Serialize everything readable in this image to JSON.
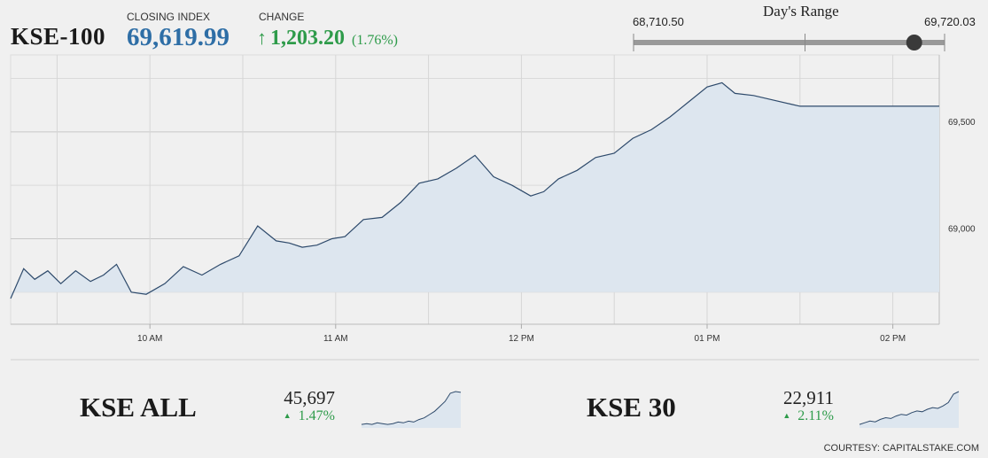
{
  "header": {
    "index_name": "KSE-100",
    "closing_label": "CLOSING INDEX",
    "closing_value": "69,619.99",
    "change_label": "CHANGE",
    "change_arrow": "↑",
    "change_value": "1,203.20",
    "change_pct": "(1.76%)",
    "positive_color": "#2e9b4a",
    "accent_color": "#2e6ea6"
  },
  "days_range": {
    "title": "Day's Range",
    "low_label": "68,710.50",
    "high_label": "69,720.03",
    "low": 68710.5,
    "high": 69720.03,
    "current": 69619.99
  },
  "chart_data": {
    "type": "area",
    "x_ticks": [
      "10 AM",
      "11 AM",
      "12 PM",
      "01 PM",
      "02 PM"
    ],
    "y_ticks": [
      "69,500",
      "69,000"
    ],
    "y_tick_values": [
      69500,
      69000
    ],
    "ylim": [
      68600,
      69860
    ],
    "xlim": [
      9.25,
      14.25
    ],
    "grid": true,
    "line_color": "#2e4a6b",
    "fill_color": "#dde6ef",
    "x": [
      9.25,
      9.32,
      9.38,
      9.45,
      9.52,
      9.6,
      9.68,
      9.75,
      9.82,
      9.9,
      9.98,
      10.08,
      10.18,
      10.28,
      10.38,
      10.48,
      10.58,
      10.68,
      10.75,
      10.82,
      10.9,
      10.98,
      11.05,
      11.15,
      11.25,
      11.35,
      11.45,
      11.55,
      11.65,
      11.75,
      11.85,
      11.95,
      12.05,
      12.12,
      12.2,
      12.3,
      12.4,
      12.5,
      12.6,
      12.7,
      12.8,
      12.9,
      13.0,
      13.08,
      13.15,
      13.25,
      13.35,
      13.45,
      13.5,
      13.65,
      13.85,
      14.0,
      14.25
    ],
    "y": [
      68720,
      68860,
      68810,
      68850,
      68790,
      68850,
      68800,
      68830,
      68880,
      68750,
      68740,
      68790,
      68870,
      68830,
      68880,
      68920,
      69060,
      68990,
      68980,
      68960,
      68970,
      69000,
      69010,
      69090,
      69100,
      69170,
      69260,
      69280,
      69330,
      69390,
      69290,
      69250,
      69200,
      69220,
      69280,
      69320,
      69380,
      69400,
      69470,
      69510,
      69570,
      69640,
      69710,
      69730,
      69680,
      69670,
      69650,
      69630,
      69620,
      69620,
      69620,
      69620,
      69620
    ]
  },
  "mini_charts": [
    {
      "name": "KSE ALL",
      "value": "45,697",
      "change": "1.47%",
      "arrow": "▲",
      "spark": [
        2,
        3,
        2,
        4,
        3,
        2,
        3,
        5,
        4,
        6,
        5,
        8,
        10,
        14,
        18,
        24,
        30,
        40,
        42,
        41
      ]
    },
    {
      "name": "KSE 30",
      "value": "22,911",
      "change": "2.11%",
      "arrow": "▲",
      "spark": [
        2,
        4,
        6,
        5,
        8,
        10,
        9,
        12,
        14,
        13,
        16,
        18,
        17,
        20,
        22,
        21,
        24,
        28,
        38,
        41
      ]
    }
  ],
  "credit": "COURTESY: CAPITALSTAKE.COM"
}
